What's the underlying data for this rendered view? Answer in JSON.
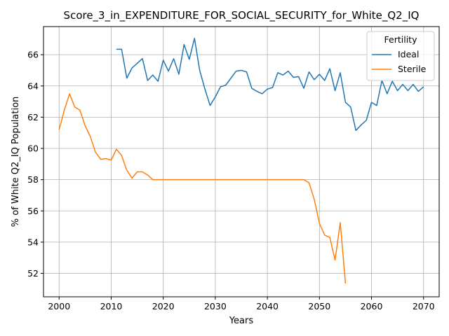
{
  "chart_data": {
    "type": "line",
    "title": "Score_3_in_EXPENDITURE_FOR_SOCIAL_SECURITY_for_White_Q2_IQ",
    "xlabel": "Years",
    "ylabel": "% of White Q2_IQ Population",
    "xlim": [
      1997,
      2073
    ],
    "ylim": [
      50.5,
      67.8
    ],
    "xticks": [
      2000,
      2010,
      2020,
      2030,
      2040,
      2050,
      2060,
      2070
    ],
    "yticks": [
      52,
      54,
      56,
      58,
      60,
      62,
      64,
      66
    ],
    "grid": true,
    "legend": {
      "title": "Fertility",
      "placement": "top-right"
    },
    "series": [
      {
        "name": "Ideal",
        "color": "#1f77b4",
        "x": [
          2011,
          2012,
          2013,
          2014,
          2015,
          2016,
          2017,
          2018,
          2019,
          2020,
          2021,
          2022,
          2023,
          2024,
          2025,
          2026,
          2027,
          2028,
          2029,
          2030,
          2031,
          2032,
          2033,
          2034,
          2035,
          2036,
          2037,
          2038,
          2039,
          2040,
          2041,
          2042,
          2043,
          2044,
          2045,
          2046,
          2047,
          2048,
          2049,
          2050,
          2051,
          2052,
          2053,
          2054,
          2055,
          2056,
          2057,
          2058,
          2059,
          2060,
          2061,
          2062,
          2063,
          2064,
          2065,
          2066,
          2067,
          2068,
          2069,
          2070
        ],
        "values": [
          66.35,
          66.35,
          64.5,
          65.15,
          65.45,
          65.75,
          64.35,
          64.7,
          64.3,
          65.65,
          64.95,
          65.75,
          64.75,
          66.65,
          65.7,
          67.05,
          65.0,
          63.8,
          62.75,
          63.3,
          63.95,
          64.05,
          64.5,
          64.95,
          65.0,
          64.9,
          63.85,
          63.65,
          63.5,
          63.8,
          63.9,
          64.85,
          64.7,
          64.95,
          64.55,
          64.6,
          63.85,
          64.9,
          64.4,
          64.75,
          64.35,
          65.1,
          63.7,
          64.85,
          62.95,
          62.65,
          61.15,
          61.5,
          61.8,
          62.95,
          62.75,
          64.35,
          63.5,
          64.3,
          63.7,
          64.1,
          63.7,
          64.1,
          63.65,
          63.95
        ]
      },
      {
        "name": "Sterile",
        "color": "#ff7f0e",
        "x": [
          2000,
          2001,
          2002,
          2003,
          2004,
          2005,
          2006,
          2007,
          2008,
          2009,
          2010,
          2011,
          2012,
          2013,
          2014,
          2015,
          2016,
          2017,
          2018,
          2019,
          2020,
          2021,
          2022,
          2023,
          2024,
          2025,
          2026,
          2027,
          2028,
          2029,
          2030,
          2031,
          2032,
          2033,
          2034,
          2035,
          2036,
          2037,
          2038,
          2039,
          2040,
          2041,
          2042,
          2043,
          2044,
          2045,
          2046,
          2047,
          2048,
          2049,
          2050,
          2051,
          2052,
          2053,
          2054,
          2055
        ],
        "values": [
          61.2,
          62.45,
          63.5,
          62.65,
          62.45,
          61.45,
          60.75,
          59.75,
          59.3,
          59.35,
          59.25,
          59.95,
          59.55,
          58.6,
          58.1,
          58.5,
          58.5,
          58.3,
          58.0,
          58.0,
          58.0,
          58.0,
          58.0,
          58.0,
          58.0,
          58.0,
          58.0,
          58.0,
          58.0,
          58.0,
          58.0,
          58.0,
          58.0,
          58.0,
          58.0,
          58.0,
          58.0,
          58.0,
          58.0,
          58.0,
          58.0,
          58.0,
          58.0,
          58.0,
          58.0,
          58.0,
          58.0,
          58.0,
          57.8,
          56.75,
          55.2,
          54.45,
          54.3,
          52.85,
          55.25,
          51.35
        ]
      }
    ]
  }
}
